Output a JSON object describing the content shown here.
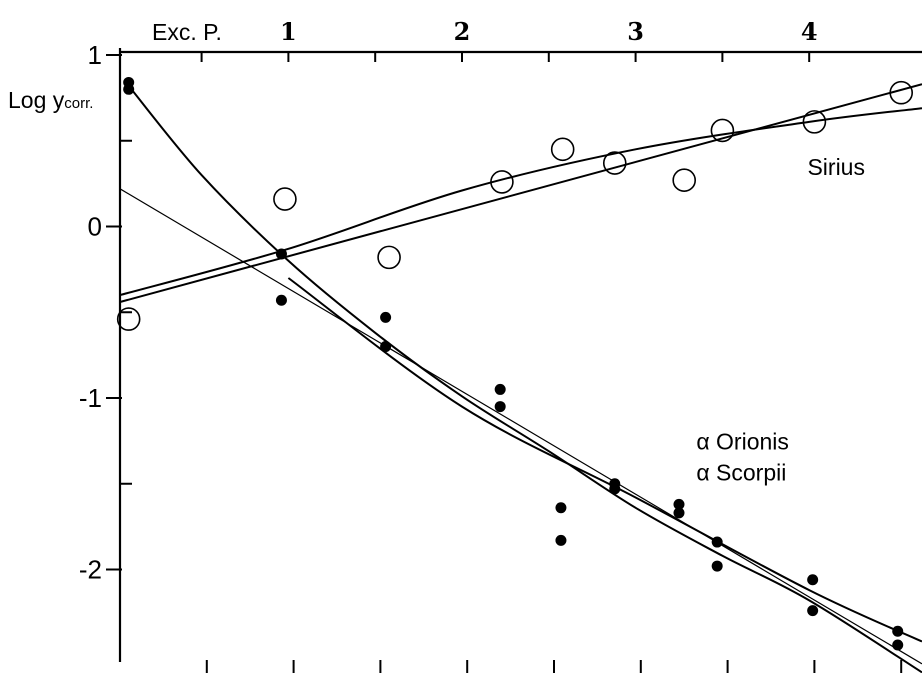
{
  "chart_data": {
    "type": "scatter",
    "xlabel": "Exc. P.",
    "ylabel_main": "Log y",
    "ylabel_sub": "corr.",
    "xlim": [
      0.03,
      4.65
    ],
    "ylim": [
      -2.5,
      1.0
    ],
    "x_ticks": [
      {
        "value": 1,
        "label": "1"
      },
      {
        "value": 2,
        "label": "2"
      },
      {
        "value": 3,
        "label": "3"
      },
      {
        "value": 4,
        "label": "4"
      }
    ],
    "x_minor_ticks": [
      0.5,
      1.5,
      2.5,
      3.5
    ],
    "y_ticks": [
      {
        "value": 1,
        "label": "1"
      },
      {
        "value": 0,
        "label": "0"
      },
      {
        "value": -1,
        "label": "-1"
      },
      {
        "value": -2,
        "label": "-2"
      }
    ],
    "y_minor_ticks": [
      0.5,
      -0.5,
      -1.5
    ],
    "bottom_ticks": [
      0.53,
      1.03,
      1.53,
      2.03,
      2.53,
      3.03,
      3.53,
      4.03,
      4.53
    ],
    "grid": false,
    "series": [
      {
        "name": "Sirius",
        "marker": "open-circle",
        "x": [
          0.08,
          0.98,
          1.58,
          2.23,
          2.58,
          2.88,
          3.28,
          3.5,
          4.03,
          4.53
        ],
        "y": [
          -0.54,
          0.16,
          -0.18,
          0.26,
          0.45,
          0.37,
          0.27,
          0.56,
          0.61,
          0.78
        ]
      },
      {
        "name": "α Orionis / α Scorpii",
        "marker": "filled-dot",
        "x": [
          0.08,
          0.08,
          0.96,
          0.96,
          1.56,
          1.56,
          2.22,
          2.22,
          2.57,
          2.57,
          2.88,
          2.88,
          3.25,
          3.25,
          3.47,
          3.47,
          4.02,
          4.02,
          4.51,
          4.51
        ],
        "y": [
          0.84,
          0.8,
          -0.16,
          -0.43,
          -0.53,
          -0.7,
          -0.95,
          -1.05,
          -1.64,
          -1.83,
          -1.5,
          -1.53,
          -1.62,
          -1.67,
          -1.84,
          -1.98,
          -2.06,
          -2.24,
          -2.36,
          -2.44
        ]
      }
    ],
    "curves": [
      {
        "name": "sirius-fit-curve",
        "style": "thick",
        "x": [
          0.03,
          1.0,
          2.0,
          3.0,
          4.0,
          4.65
        ],
        "y": [
          -0.4,
          -0.13,
          0.21,
          0.45,
          0.61,
          0.69
        ]
      },
      {
        "name": "sirius-fit-line",
        "style": "thick",
        "x": [
          0.03,
          4.65
        ],
        "y": [
          -0.44,
          0.83
        ]
      },
      {
        "name": "orionis-fit-curve",
        "style": "thick",
        "x": [
          0.08,
          0.5,
          1.0,
          1.5,
          2.0,
          2.5,
          3.0,
          3.5,
          4.0,
          4.65
        ],
        "y": [
          0.82,
          0.3,
          -0.2,
          -0.62,
          -0.99,
          -1.31,
          -1.64,
          -1.92,
          -2.18,
          -2.6
        ]
      },
      {
        "name": "orionis-fit-line",
        "style": "thin",
        "x": [
          0.03,
          4.65
        ],
        "y": [
          0.22,
          -2.55
        ]
      },
      {
        "name": "orionis-fit-curve-2",
        "style": "thick",
        "x": [
          1.0,
          2.0,
          3.0,
          4.0,
          4.65
        ],
        "y": [
          -0.3,
          -1.05,
          -1.58,
          -2.12,
          -2.42
        ]
      }
    ],
    "annotations": [
      {
        "text": "Sirius",
        "x": 3.99,
        "y": 0.3
      },
      {
        "text": "α Orionis",
        "x": 3.35,
        "y": -1.3
      },
      {
        "text": "α Scorpii",
        "x": 3.35,
        "y": -1.48
      }
    ]
  }
}
